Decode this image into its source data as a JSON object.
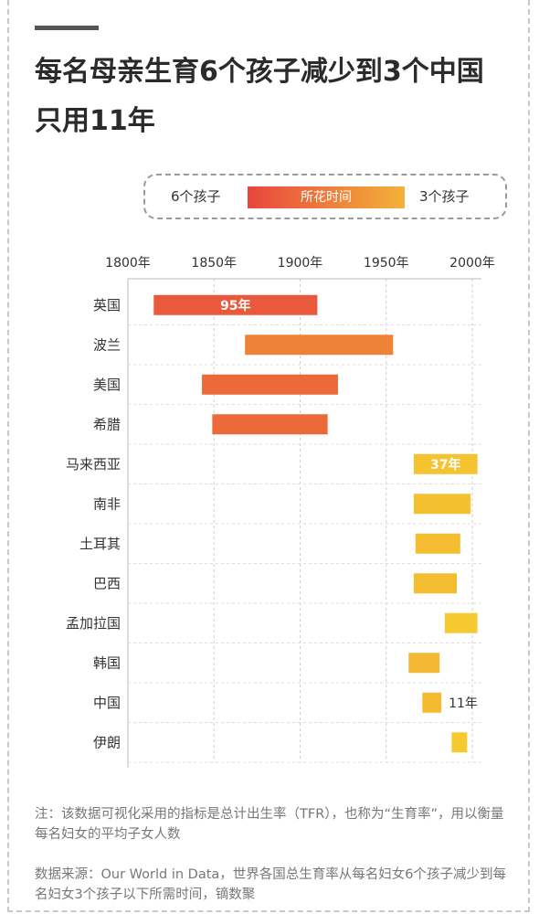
{
  "title": "每名母亲生育6个孩子减少到3个中国只用11年",
  "legend": {
    "left_label": "6个孩子",
    "bar_label": "所花时间",
    "right_label": "3个孩子"
  },
  "colors": {
    "start": "#e8463e",
    "end": "#f6cf2e"
  },
  "chart_data": {
    "type": "bar",
    "orientation": "horizontal-range",
    "x_ticks": [
      "1800年",
      "1850年",
      "1900年",
      "1950年",
      "2000年"
    ],
    "xlim": [
      1800,
      2000
    ],
    "categories": [
      "英国",
      "波兰",
      "美国",
      "希腊",
      "马来西亚",
      "南非",
      "土耳其",
      "巴西",
      "孟加拉国",
      "韩国",
      "中国",
      "伊朗"
    ],
    "start": [
      1815,
      1868,
      1843,
      1849,
      1966,
      1966,
      1967,
      1966,
      1984,
      1963,
      1971,
      1988
    ],
    "end": [
      1910,
      1954,
      1922,
      1916,
      2003,
      1999,
      1993,
      1991,
      2003,
      1981,
      1982,
      1997
    ],
    "labels": [
      "95年",
      "",
      "",
      "",
      "37年",
      "",
      "",
      "",
      "",
      "",
      "11年",
      ""
    ],
    "grid": true
  },
  "notes": {
    "note": "注：该数据可视化采用的指标是总计出生率（TFR），也称为“生育率”，用以衡量每名妇女的平均子女人数",
    "source": "数据来源：Our World in Data，世界各国总生育率从每名妇女6个孩子减少到每名妇女3个孩子以下所需时间，镝数聚"
  }
}
